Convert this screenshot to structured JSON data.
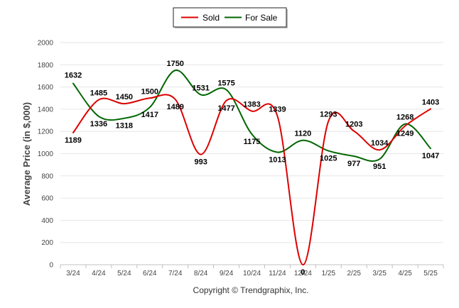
{
  "chart_data": {
    "type": "line",
    "title": "",
    "xlabel": "",
    "ylabel": "Average Price (in $,000)",
    "categories": [
      "3/24",
      "4/24",
      "5/24",
      "6/24",
      "7/24",
      "8/24",
      "9/24",
      "10/24",
      "11/24",
      "12/24",
      "1/25",
      "2/25",
      "3/25",
      "4/25",
      "5/25"
    ],
    "ylim": [
      0,
      2000
    ],
    "yticks": [
      0,
      200,
      400,
      600,
      800,
      1000,
      1200,
      1400,
      1600,
      1800,
      2000
    ],
    "grid": true,
    "legend_position": "top-center",
    "series": [
      {
        "name": "Sold",
        "color": "#dd0000",
        "values": [
          1189,
          1485,
          1450,
          1500,
          1489,
          993,
          1477,
          1383,
          1339,
          0,
          1293,
          1203,
          1034,
          1249,
          1403
        ]
      },
      {
        "name": "For Sale",
        "color": "#006600",
        "values": [
          1632,
          1336,
          1318,
          1417,
          1750,
          1531,
          1575,
          1175,
          1013,
          1120,
          1025,
          977,
          951,
          1268,
          1047
        ]
      }
    ]
  },
  "footer": {
    "copyright": "Copyright © Trendgraphix, Inc."
  }
}
